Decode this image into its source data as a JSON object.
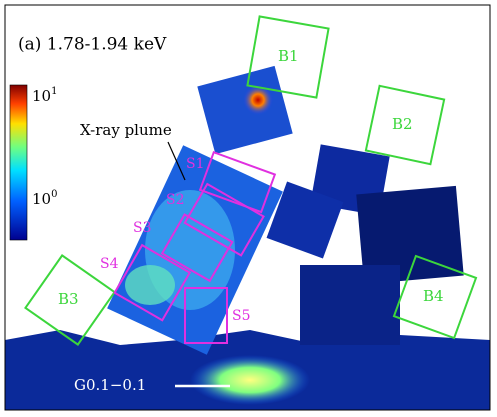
{
  "panel": {
    "title": "(a) 1.78-1.94 keV"
  },
  "colorbar": {
    "ticks": [
      {
        "base": "10",
        "exponent": "1"
      },
      {
        "base": "10",
        "exponent": "0"
      }
    ]
  },
  "regions": {
    "background": [
      "B1",
      "B2",
      "B3",
      "B4"
    ],
    "source": [
      "S1",
      "S2",
      "S3",
      "S4",
      "S5"
    ]
  },
  "annotations": {
    "plume": "X-ray plume",
    "cloud": "G0.1−0.1"
  }
}
